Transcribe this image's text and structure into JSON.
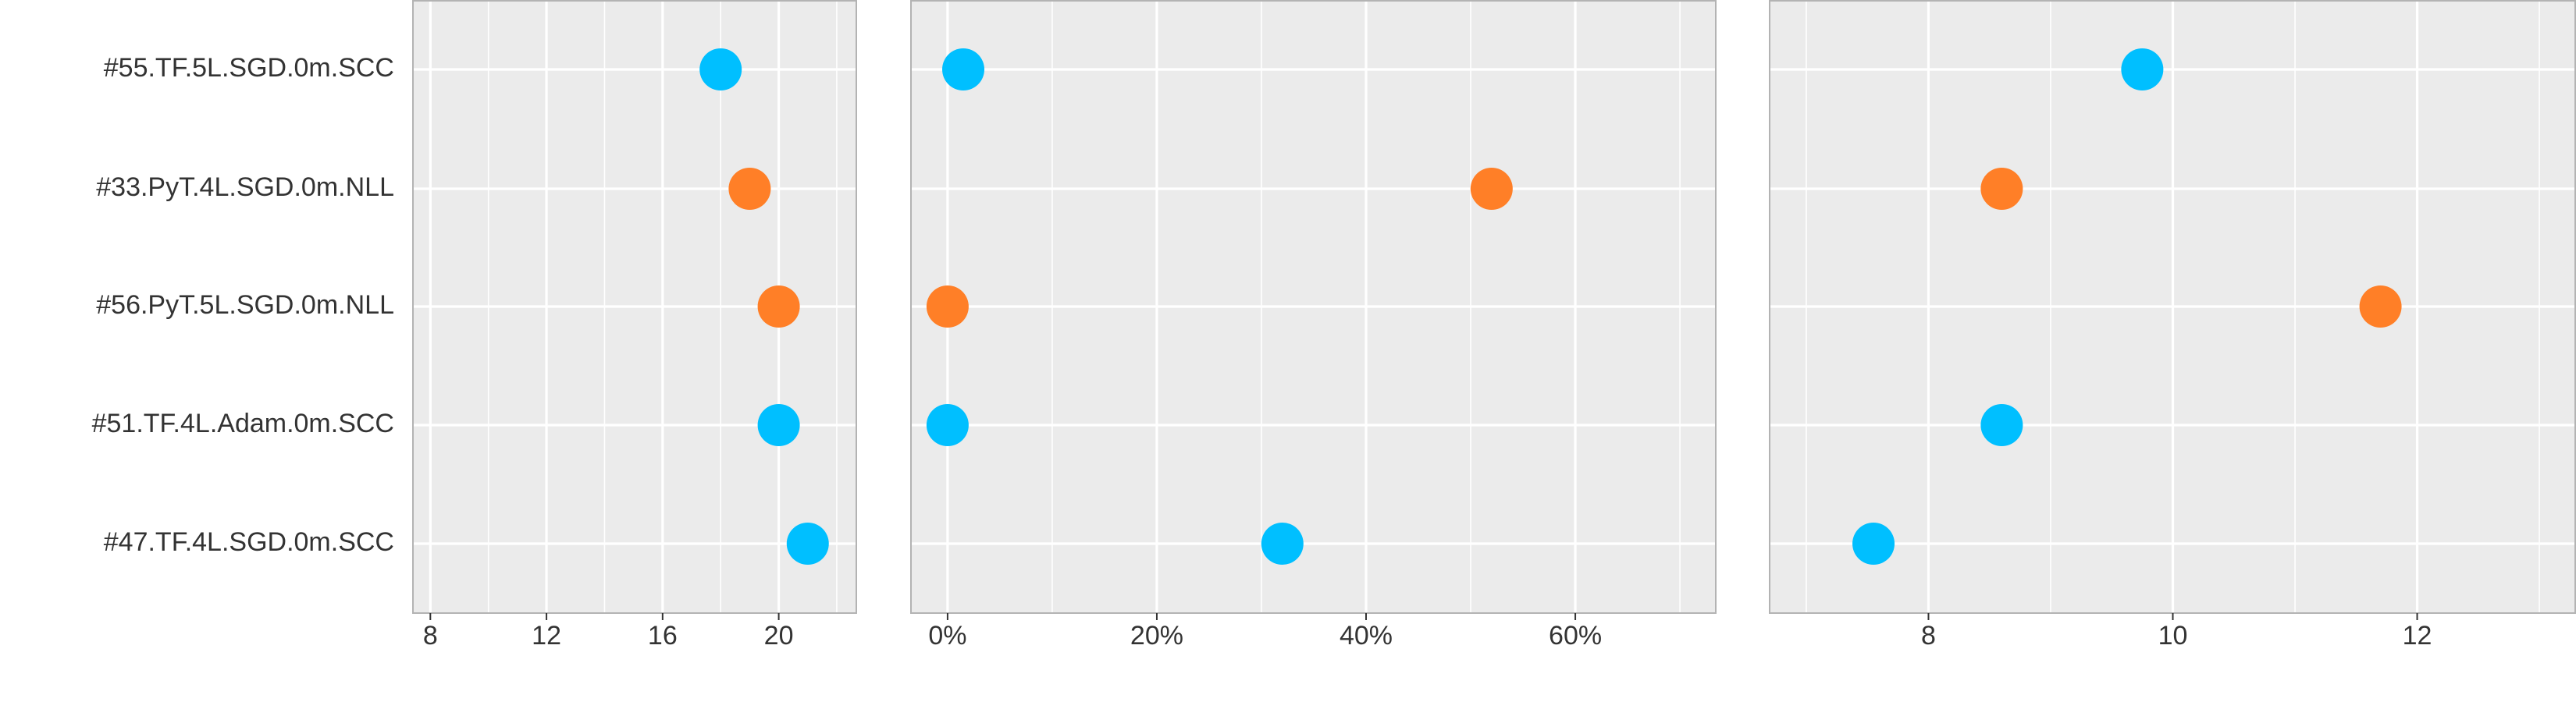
{
  "chart_data": {
    "type": "scatter",
    "categories": [
      "#55.TF.5L.SGD.0m.SCC",
      "#33.PyT.4L.SGD.0m.NLL",
      "#56.PyT.5L.SGD.0m.NLL",
      "#51.TF.4L.Adam.0m.SCC",
      "#47.TF.4L.SGD.0m.SCC"
    ],
    "point_colors": [
      "#00bfff",
      "#ff7f27",
      "#ff7f27",
      "#00bfff",
      "#00bfff"
    ],
    "grid": true,
    "panels": [
      {
        "xlim": [
          7.4,
          22.7
        ],
        "ticks": [
          8,
          12,
          16,
          20
        ],
        "tick_labels": [
          "8",
          "12",
          "16",
          "20"
        ],
        "values": [
          18,
          19,
          20,
          20,
          21
        ]
      },
      {
        "xlim": [
          -3.5,
          73.5
        ],
        "ticks": [
          0,
          20,
          40,
          60
        ],
        "tick_labels": [
          "0%",
          "20%",
          "40%",
          "60%"
        ],
        "values": [
          1.5,
          52,
          0,
          0,
          32
        ]
      },
      {
        "xlim": [
          6.7,
          13.3
        ],
        "ticks": [
          8,
          10,
          12
        ],
        "tick_labels": [
          "8",
          "10",
          "12"
        ],
        "values": [
          9.75,
          8.6,
          11.7,
          8.6,
          7.55
        ]
      }
    ]
  }
}
